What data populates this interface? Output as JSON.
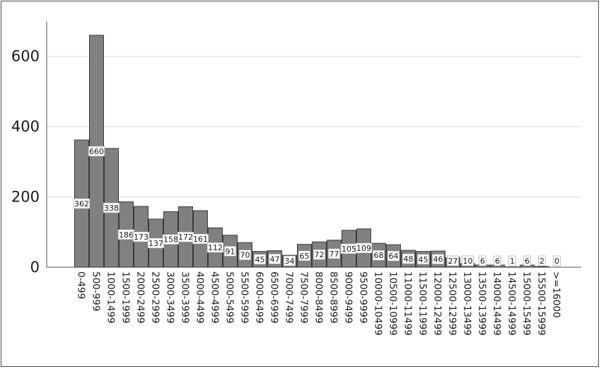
{
  "chart_data": {
    "type": "bar",
    "title": "",
    "xlabel": "",
    "ylabel": "",
    "ylim": [
      0,
      700
    ],
    "yticks": [
      0,
      200,
      400,
      600
    ],
    "grid": true,
    "legend": "none",
    "colors": {
      "bar": "#808080",
      "bar_edge": "#3a3a3a",
      "grid": "#d8d8d8",
      "axis": "#555555",
      "label_box": "#ffffff"
    },
    "categories": [
      "0-499",
      "500-999",
      "1000-1499",
      "1500-1999",
      "2000-2499",
      "2500-2999",
      "3000-3499",
      "3500-3999",
      "4000-4499",
      "4500-4999",
      "5000-5499",
      "5500-5999",
      "6000-6499",
      "6500-6999",
      "7000-7499",
      "7500-7999",
      "8000-8499",
      "8500-8999",
      "9000-9499",
      "9500-9999",
      "10000-10499",
      "10500-10999",
      "11000-11499",
      "11500-11999",
      "12000-12499",
      "12500-12999",
      "13000-13499",
      "13500-13999",
      "14000-14499",
      "14500-14999",
      "15000-15499",
      "15500-15999",
      ">=16000"
    ],
    "values": [
      362,
      660,
      338,
      186,
      173,
      137,
      158,
      172,
      161,
      112,
      91,
      70,
      45,
      47,
      34,
      65,
      72,
      77,
      105,
      109,
      68,
      64,
      48,
      45,
      46,
      27,
      10,
      6,
      6,
      1,
      6,
      2,
      0
    ]
  }
}
